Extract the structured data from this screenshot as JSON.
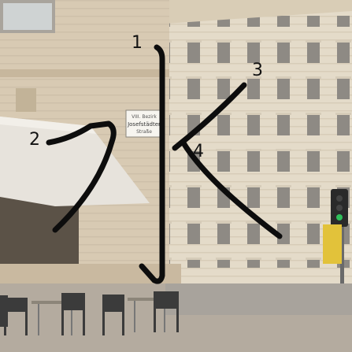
{
  "scene": {
    "icon": "street-photo-with-handwritten-character",
    "sky_color": "#f3f0ea",
    "building_right_color": "#e4dbc9",
    "building_left_color": "#d9ccb7",
    "awning_color": "#e7e3dc",
    "stroke_color": "#0d0d0d"
  },
  "strokes": [
    {
      "number": "1"
    },
    {
      "number": "2"
    },
    {
      "number": "3"
    },
    {
      "number": "4"
    }
  ],
  "sign": {
    "line1": "VIII. Bezirk",
    "line2": "Josefstädter",
    "line3": "Straße"
  }
}
